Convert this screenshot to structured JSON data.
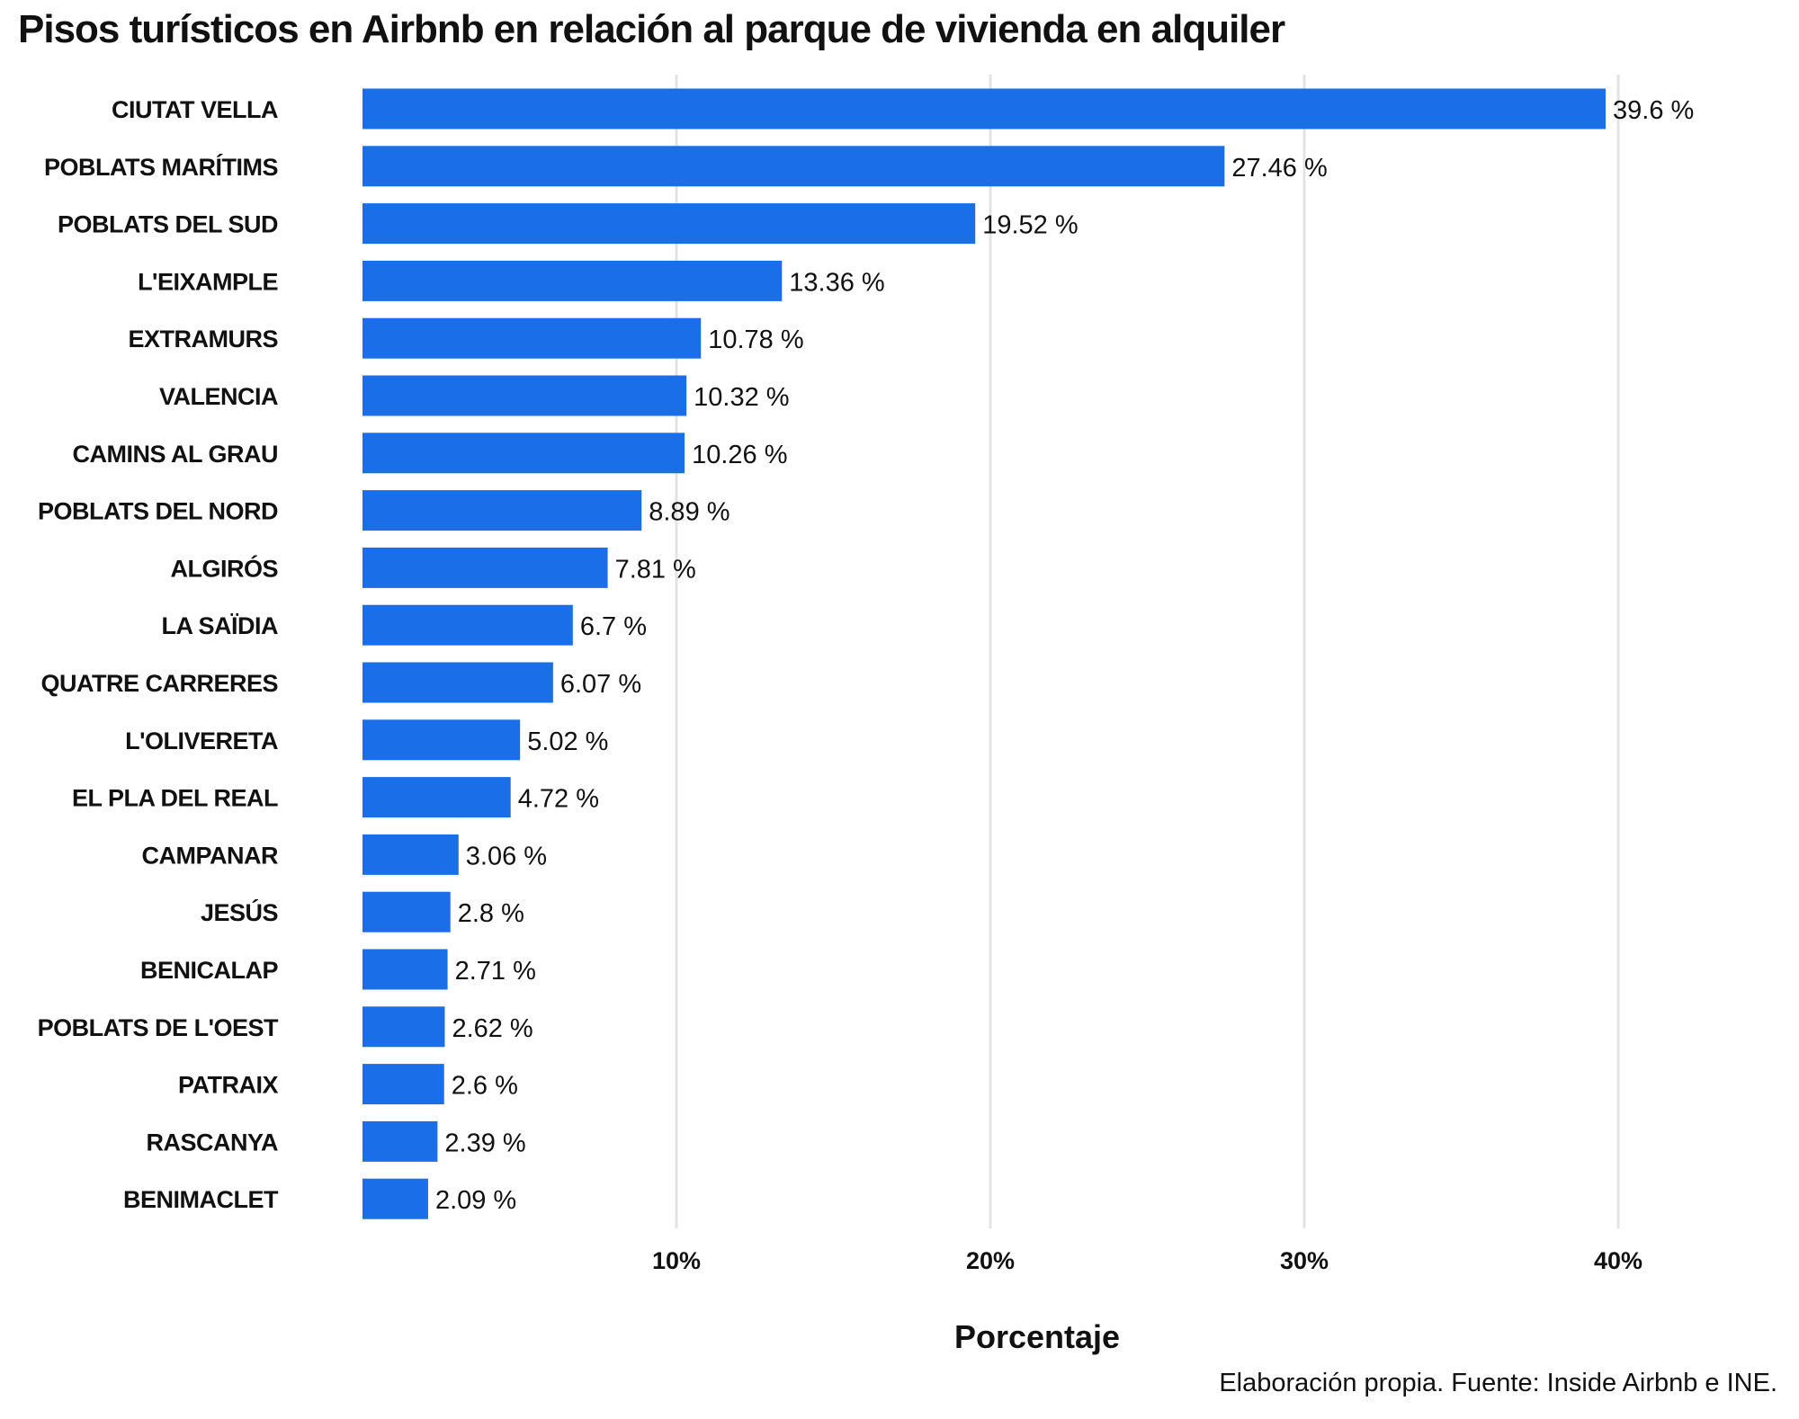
{
  "chart_data": {
    "type": "bar",
    "orientation": "horizontal",
    "title": "Pisos turísticos en Airbnb en relación al parque de vivienda en alquiler",
    "xlabel": "Porcentaje",
    "ylabel": "",
    "caption": "Elaboración propia. Fuente: Inside Airbnb e INE.",
    "xlim": [
      0,
      43
    ],
    "xticks": [
      10,
      20,
      30,
      40
    ],
    "xtick_labels": [
      "10%",
      "20%",
      "30%",
      "40%"
    ],
    "grid": "vertical",
    "bar_color": "#1a6fe8",
    "categories": [
      "CIUTAT VELLA",
      "POBLATS MARÍTIMS",
      "POBLATS DEL SUD",
      "L'EIXAMPLE",
      "EXTRAMURS",
      "VALENCIA",
      "CAMINS AL GRAU",
      "POBLATS DEL NORD",
      "ALGIRÓS",
      "LA SAÏDIA",
      "QUATRE CARRERES",
      "L'OLIVERETA",
      "EL PLA DEL REAL",
      "CAMPANAR",
      "JESÚS",
      "BENICALAP",
      "POBLATS DE L'OEST",
      "PATRAIX",
      "RASCANYA",
      "BENIMACLET"
    ],
    "values": [
      39.6,
      27.46,
      19.52,
      13.36,
      10.78,
      10.32,
      10.26,
      8.89,
      7.81,
      6.7,
      6.07,
      5.02,
      4.72,
      3.06,
      2.8,
      2.71,
      2.62,
      2.6,
      2.39,
      2.09
    ],
    "data_labels": [
      "39.6 %",
      "27.46 %",
      "19.52 %",
      "13.36 %",
      "10.78 %",
      "10.32 %",
      "10.26 %",
      "8.89 %",
      "7.81 %",
      "6.7 %",
      "6.07 %",
      "5.02 %",
      "4.72 %",
      "3.06 %",
      "2.8 %",
      "2.71 %",
      "2.62 %",
      "2.6 %",
      "2.39 %",
      "2.09 %"
    ]
  }
}
